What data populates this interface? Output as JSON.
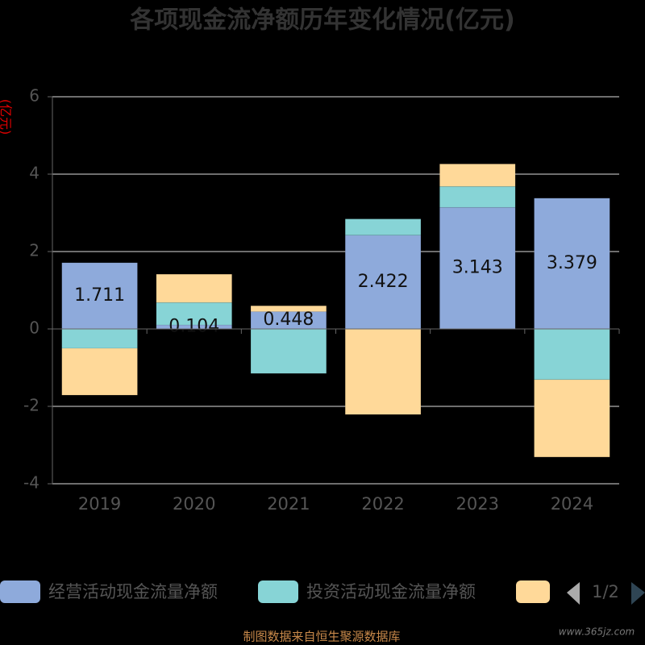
{
  "chart_data": {
    "type": "bar",
    "title": "各项现金流净额历年变化情况(亿元)",
    "y_axis_label": "(亿元)",
    "categories": [
      "2019",
      "2020",
      "2021",
      "2022",
      "2023",
      "2024"
    ],
    "series": [
      {
        "name": "经营活动现金流量净额",
        "color": "#8eaadb",
        "values": [
          1.711,
          0.104,
          0.448,
          2.422,
          3.143,
          3.379
        ]
      },
      {
        "name": "投资活动现金流量净额",
        "color": "#87d4d6",
        "values": [
          -0.5,
          0.58,
          -1.15,
          0.42,
          0.54,
          -1.31
        ]
      },
      {
        "color": "#ffd999",
        "values": [
          -1.21,
          0.73,
          0.15,
          -2.21,
          0.58,
          -2.0
        ]
      }
    ],
    "stacked": true,
    "ylim": [
      -4,
      6
    ],
    "yticks": [
      6,
      4,
      2,
      0,
      -2,
      -4
    ],
    "grid": true,
    "legend_page": "1/2",
    "source": "制图数据来自恒生聚源数据库",
    "watermark": "www.365jz.com"
  }
}
